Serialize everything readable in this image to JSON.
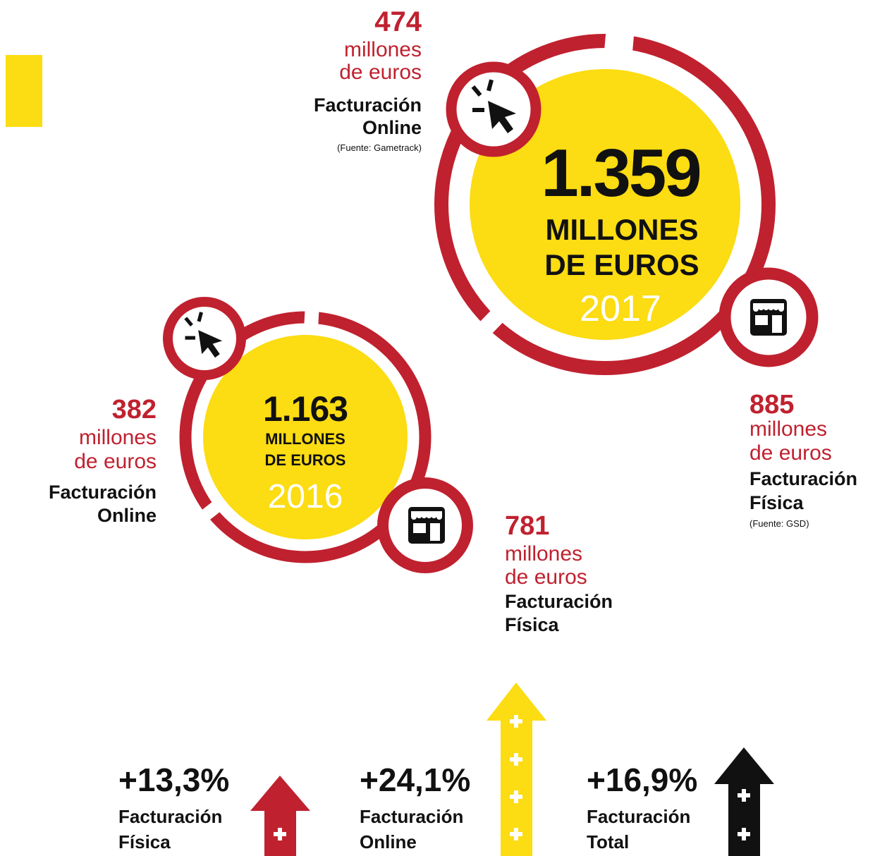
{
  "circles": [
    {
      "total": "1.359",
      "unit_lines": [
        "MILLONES",
        "DE EUROS"
      ],
      "year": "2017",
      "online": {
        "value": "474",
        "unit_lines": [
          "millones",
          "de euros"
        ],
        "label_lines": [
          "Facturación",
          "Online"
        ],
        "source": "(Fuente: Gametrack)"
      },
      "fisica": {
        "value": "885",
        "unit_lines": [
          "millones",
          "de euros"
        ],
        "label_lines": [
          "Facturación",
          "Física"
        ],
        "source": "(Fuente: GSD)"
      }
    },
    {
      "total": "1.163",
      "unit_lines": [
        "MILLONES",
        "DE EUROS"
      ],
      "year": "2016",
      "online": {
        "value": "382",
        "unit_lines": [
          "millones",
          "de euros"
        ],
        "label_lines": [
          "Facturación",
          "Online"
        ]
      },
      "fisica": {
        "value": "781",
        "unit_lines": [
          "millones",
          "de euros"
        ],
        "label_lines": [
          "Facturación",
          "Física"
        ]
      }
    }
  ],
  "growth": [
    {
      "value": "+13,3%",
      "label_lines": [
        "Facturación",
        "Física"
      ]
    },
    {
      "value": "+24,1%",
      "label_lines": [
        "Facturación",
        "Online"
      ]
    },
    {
      "value": "+16,9%",
      "label_lines": [
        "Facturación",
        "Total"
      ]
    }
  ]
}
